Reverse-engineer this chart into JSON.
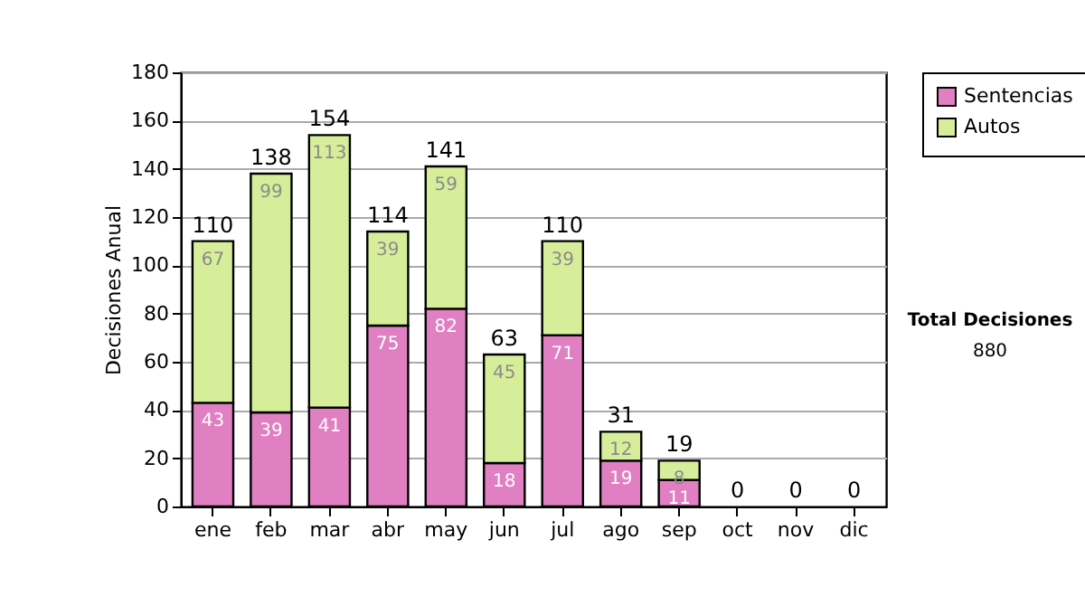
{
  "chart_data": {
    "type": "bar",
    "stacked": true,
    "ylabel": "Decisiones Anual",
    "categories": [
      "ene",
      "feb",
      "mar",
      "abr",
      "may",
      "jun",
      "jul",
      "ago",
      "sep",
      "oct",
      "nov",
      "dic"
    ],
    "series": [
      {
        "name": "Sentencias",
        "color": "#e07fc2",
        "values": [
          43,
          39,
          41,
          75,
          82,
          18,
          71,
          19,
          11,
          0,
          0,
          0
        ],
        "value_labels": [
          "43",
          "39",
          "41",
          "75",
          "82",
          "18",
          "71",
          "19",
          "11",
          null,
          null,
          null
        ]
      },
      {
        "name": "Autos",
        "color": "#d6ee9a",
        "values": [
          67,
          99,
          113,
          39,
          59,
          45,
          39,
          12,
          8,
          0,
          0,
          0
        ],
        "value_labels": [
          "67",
          "99",
          "113",
          "39",
          "59",
          "45",
          "39",
          "12",
          "8",
          null,
          null,
          null
        ]
      }
    ],
    "totals": [
      "110",
      "138",
      "154",
      "114",
      "141",
      "63",
      "110",
      "31",
      "19",
      "0",
      "0",
      "0"
    ],
    "ylim": [
      0,
      180
    ],
    "yticks": [
      0,
      20,
      40,
      60,
      80,
      100,
      120,
      140,
      160,
      180
    ],
    "grid": "y",
    "legend": "right",
    "annotations": [
      "Total Decisiones",
      "880"
    ]
  }
}
